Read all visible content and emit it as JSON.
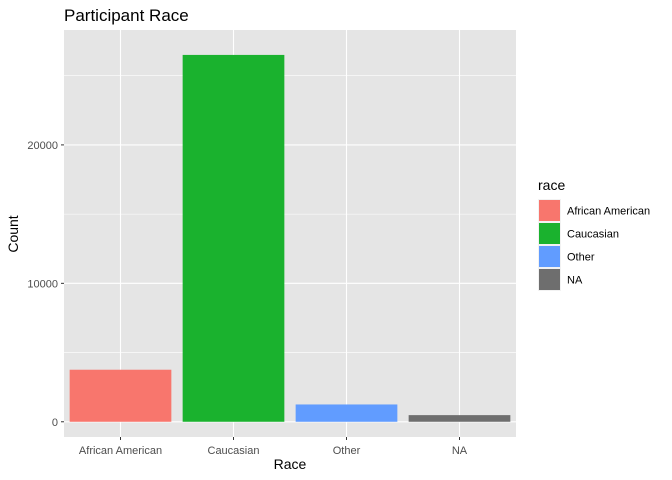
{
  "chart_data": {
    "type": "bar",
    "title": "Participant Race",
    "xlabel": "Race",
    "ylabel": "Count",
    "categories": [
      "African American",
      "Caucasian",
      "Other",
      "NA"
    ],
    "values": [
      3760,
      26500,
      1250,
      480
    ],
    "colors": [
      "#F8766D",
      "#1AB22E",
      "#619CFF",
      "#6E6E6E"
    ],
    "ylim": [
      -1100,
      28300
    ],
    "yticks": [
      0,
      10000,
      20000
    ],
    "ytick_labels": [
      "0",
      "10000",
      "20000"
    ],
    "grid": true,
    "panel_background": "#E5E5E5",
    "grid_color": "#FFFFFF",
    "legend": {
      "title": "race",
      "position": "right",
      "entries": [
        "African American",
        "Caucasian",
        "Other",
        "NA"
      ]
    }
  }
}
